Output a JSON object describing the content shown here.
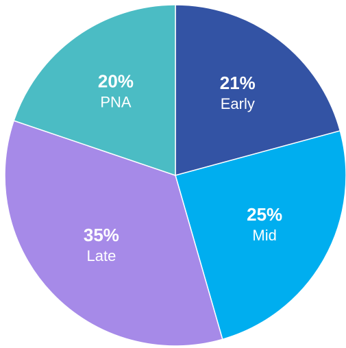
{
  "chart_data": {
    "type": "pie",
    "categories": [
      "Early",
      "Mid",
      "Late",
      "PNA"
    ],
    "values": [
      21,
      25,
      35,
      20
    ],
    "value_labels": [
      "21%",
      "25%",
      "35%",
      "20%"
    ],
    "colors": [
      "#3353a4",
      "#00aeef",
      "#a68ae8",
      "#4bbcc4"
    ]
  }
}
